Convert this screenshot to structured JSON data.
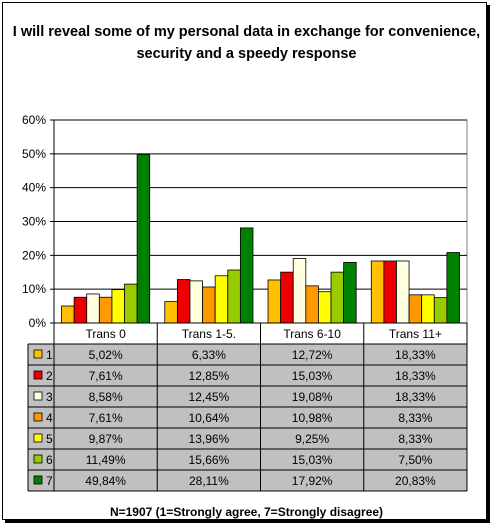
{
  "chart_data": {
    "type": "bar",
    "title": "I will reveal some of my personal data in exchange for convenience, security and a speedy response",
    "categories": [
      "Trans 0",
      "Trans 1-5.",
      "Trans 6-10",
      "Trans 11+"
    ],
    "ylim": [
      0,
      60
    ],
    "y_ticks": [
      "0%",
      "10%",
      "20%",
      "30%",
      "40%",
      "50%",
      "60%"
    ],
    "grid": true,
    "legend": "data table below chart",
    "series": [
      {
        "name": "1",
        "color": "#FFC000",
        "values": [
          5.02,
          6.33,
          12.72,
          18.33
        ],
        "labels": [
          "5,02%",
          "6,33%",
          "12,72%",
          "18,33%"
        ]
      },
      {
        "name": "2",
        "color": "#EE0000",
        "values": [
          7.61,
          12.85,
          15.03,
          18.33
        ],
        "labels": [
          "7,61%",
          "12,85%",
          "15,03%",
          "18,33%"
        ]
      },
      {
        "name": "3",
        "color": "#FFFFE0",
        "values": [
          8.58,
          12.45,
          19.08,
          18.33
        ],
        "labels": [
          "8,58%",
          "12,45%",
          "19,08%",
          "18,33%"
        ]
      },
      {
        "name": "4",
        "color": "#FF9900",
        "values": [
          7.61,
          10.64,
          10.98,
          8.33
        ],
        "labels": [
          "7,61%",
          "10,64%",
          "10,98%",
          "8,33%"
        ]
      },
      {
        "name": "5",
        "color": "#FFFF00",
        "values": [
          9.87,
          13.96,
          9.25,
          8.33
        ],
        "labels": [
          "9,87%",
          "13,96%",
          "9,25%",
          "8,33%"
        ]
      },
      {
        "name": "6",
        "color": "#99CC00",
        "values": [
          11.49,
          15.66,
          15.03,
          7.5
        ],
        "labels": [
          "11,49%",
          "15,66%",
          "15,03%",
          "7,50%"
        ]
      },
      {
        "name": "7",
        "color": "#008000",
        "values": [
          49.84,
          28.11,
          17.92,
          20.83
        ],
        "labels": [
          "49,84%",
          "28,11%",
          "17,92%",
          "20,83%"
        ]
      }
    ],
    "footnote": "N=1907 (1=Strongly agree, 7=Strongly disagree)"
  }
}
